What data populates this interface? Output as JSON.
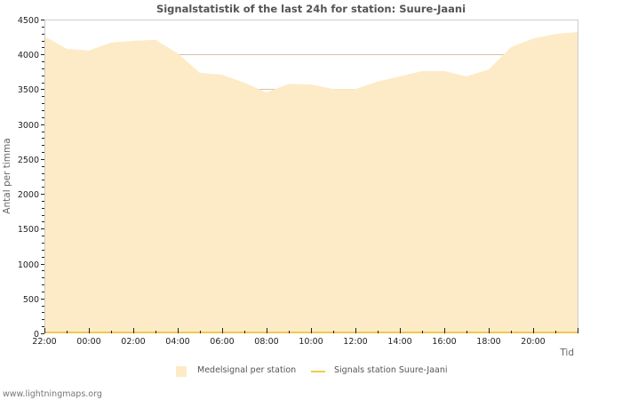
{
  "title": "Signalstatistik of the last 24h for station: Suure-Jaani",
  "footer": "www.lightningmaps.org",
  "colors": {
    "area_fill": "#fdebc8",
    "station_line": "#f2c94c",
    "grid": "#cccccc",
    "grid_major": "#d4c5a0"
  },
  "legend": {
    "items": [
      {
        "label": "Medelsignal per station",
        "type": "area"
      },
      {
        "label": "Signals station Suure-Jaani",
        "type": "line"
      }
    ]
  },
  "chart_data": {
    "type": "area",
    "title": "Signalstatistik of the last 24h for station: Suure-Jaani",
    "xlabel": "Tid",
    "ylabel": "Antal per timma",
    "ylim": [
      0,
      4500
    ],
    "yticks": [
      0,
      500,
      1000,
      1500,
      2000,
      2500,
      3000,
      3500,
      4000,
      4500
    ],
    "xtick_labels": [
      "22:00",
      "00:00",
      "02:00",
      "04:00",
      "06:00",
      "08:00",
      "10:00",
      "12:00",
      "14:00",
      "16:00",
      "18:00",
      "20:00"
    ],
    "grid": true,
    "legend_position": "bottom",
    "x": [
      "22:00",
      "23:00",
      "00:00",
      "01:00",
      "02:00",
      "03:00",
      "04:00",
      "05:00",
      "06:00",
      "07:00",
      "08:00",
      "09:00",
      "10:00",
      "11:00",
      "12:00",
      "13:00",
      "14:00",
      "15:00",
      "16:00",
      "17:00",
      "18:00",
      "19:00",
      "20:00",
      "21:00",
      "22:00"
    ],
    "series": [
      {
        "name": "Medelsignal per station",
        "type": "area",
        "values": [
          4260,
          4080,
          4055,
          4170,
          4195,
          4210,
          4015,
          3735,
          3710,
          3595,
          3455,
          3580,
          3570,
          3505,
          3505,
          3610,
          3685,
          3760,
          3760,
          3685,
          3785,
          4105,
          4230,
          4295,
          4320
        ]
      },
      {
        "name": "Signals station Suure-Jaani",
        "type": "line",
        "values": [
          0,
          0,
          0,
          0,
          0,
          0,
          0,
          0,
          0,
          0,
          0,
          0,
          0,
          0,
          0,
          0,
          0,
          0,
          0,
          0,
          0,
          0,
          0,
          0,
          0
        ]
      }
    ]
  }
}
